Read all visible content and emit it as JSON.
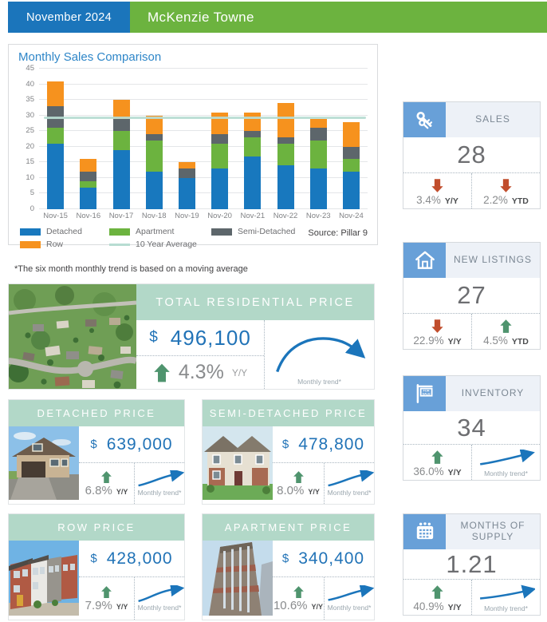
{
  "header": {
    "date": "November 2024",
    "community": "McKenzie Towne"
  },
  "chart": {
    "title": "Monthly Sales Comparison",
    "source": "Source: Pillar 9"
  },
  "note": "*The six month monthly trend is based on a moving average",
  "chart_data": {
    "type": "bar",
    "stacked": true,
    "title": "Monthly Sales Comparison",
    "categories": [
      "Nov-15",
      "Nov-16",
      "Nov-17",
      "Nov-18",
      "Nov-19",
      "Nov-20",
      "Nov-21",
      "Nov-22",
      "Nov-23",
      "Nov-24"
    ],
    "series": [
      {
        "name": "Detached",
        "color": "#1878be",
        "values": [
          21,
          7,
          19,
          12,
          10,
          13,
          17,
          14,
          13,
          12
        ]
      },
      {
        "name": "Apartment",
        "color": "#6cb33f",
        "values": [
          5,
          2,
          6,
          10,
          0,
          8,
          6,
          7,
          9,
          4
        ]
      },
      {
        "name": "Semi-Detached",
        "color": "#5d666b",
        "values": [
          7,
          3,
          4,
          2,
          3,
          3,
          2,
          2,
          4,
          4
        ]
      },
      {
        "name": "Row",
        "color": "#f6921e",
        "values": [
          8,
          4,
          6,
          6,
          2,
          7,
          6,
          11,
          3,
          8
        ]
      }
    ],
    "totals": [
      41,
      16,
      35,
      30,
      15,
      31,
      31,
      34,
      29,
      28
    ],
    "average_line": {
      "name": "10 Year Average",
      "value": 29,
      "color": "#b7dcd2"
    },
    "ylim": [
      0,
      45
    ],
    "yticks": [
      0,
      5,
      10,
      15,
      20,
      25,
      30,
      35,
      40,
      45
    ],
    "grid": true,
    "legend_position": "bottom",
    "source": "Source: Pillar 9"
  },
  "stats": [
    {
      "label": "SALES",
      "icon": "keys-icon",
      "value": "28",
      "cells": [
        {
          "arrow": "down",
          "pct": "3.4%",
          "period": "Y/Y"
        },
        {
          "arrow": "down",
          "pct": "2.2%",
          "period": "YTD"
        }
      ]
    },
    {
      "label": "NEW LISTINGS",
      "icon": "house-icon",
      "value": "27",
      "cells": [
        {
          "arrow": "down",
          "pct": "22.9%",
          "period": "Y/Y"
        },
        {
          "arrow": "up",
          "pct": "4.5%",
          "period": "YTD"
        }
      ]
    },
    {
      "label": "INVENTORY",
      "icon": "for-sale-sign-icon",
      "value": "34",
      "cells": [
        {
          "arrow": "up",
          "pct": "36.0%",
          "period": "Y/Y"
        },
        {
          "trend": "up",
          "caption": "Monthly trend*"
        }
      ]
    },
    {
      "label": "MONTHS OF SUPPLY",
      "icon": "calendar-icon",
      "value": "1.21",
      "cells": [
        {
          "arrow": "up",
          "pct": "40.9%",
          "period": "Y/Y"
        },
        {
          "trend": "up",
          "caption": "Monthly trend*"
        }
      ]
    }
  ],
  "total_card": {
    "title": "TOTAL RESIDENTIAL PRICE",
    "currency": "$",
    "value": "496,100",
    "arrow": "up",
    "pct": "4.3%",
    "period": "Y/Y",
    "trend_caption": "Monthly trend*"
  },
  "price_cards": [
    {
      "title": "DETACHED PRICE",
      "currency": "$",
      "value": "639,000",
      "arrow": "up",
      "pct": "6.8%",
      "period": "Y/Y",
      "trend_caption": "Monthly trend*"
    },
    {
      "title": "SEMI-DETACHED PRICE",
      "currency": "$",
      "value": "478,800",
      "arrow": "up",
      "pct": "8.0%",
      "period": "Y/Y",
      "trend_caption": "Monthly trend*"
    },
    {
      "title": "ROW PRICE",
      "currency": "$",
      "value": "428,000",
      "arrow": "up",
      "pct": "7.9%",
      "period": "Y/Y",
      "trend_caption": "Monthly trend*"
    },
    {
      "title": "APARTMENT PRICE",
      "currency": "$",
      "value": "340,400",
      "arrow": "up",
      "pct": "10.6%",
      "period": "Y/Y",
      "trend_caption": "Monthly trend*"
    }
  ],
  "colors": {
    "header_blue": "#1b75bb",
    "header_green": "#6cb33f",
    "mint": "#b2d8c8",
    "icon_box_blue": "#68a0d8",
    "value_blue": "#2173b7",
    "arrow_red": "#c14d2c",
    "arrow_green": "#4f946e",
    "trend_blue": "#1b75bb"
  }
}
